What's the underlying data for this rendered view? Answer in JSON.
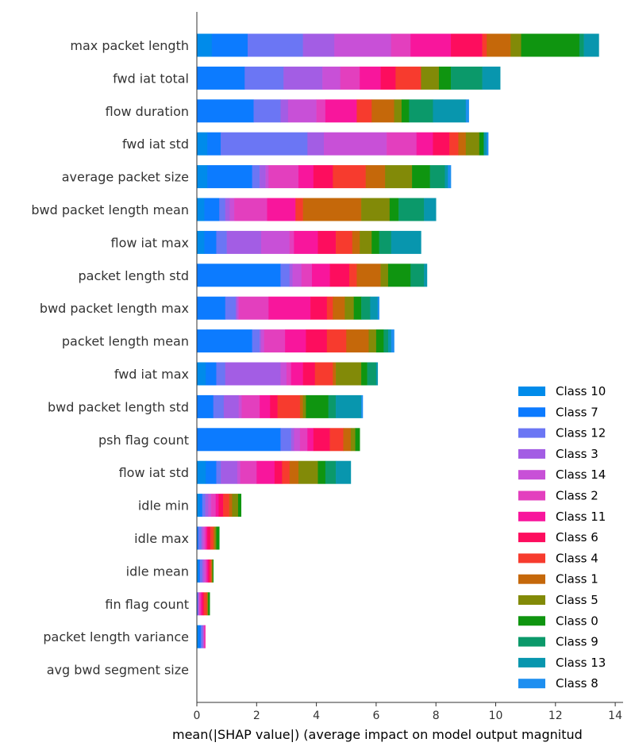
{
  "chart_data": {
    "type": "bar",
    "orientation": "horizontal",
    "stacked": true,
    "xlabel": "mean(|SHAP value|) (average impact on model output magnitud",
    "xlim": [
      0,
      14.2
    ],
    "xticks": [
      0,
      2,
      4,
      6,
      8,
      10,
      12,
      14
    ],
    "grid": false,
    "legend_position": "bottom-right",
    "categories": [
      "max packet length",
      "fwd iat total",
      "flow duration",
      "fwd iat std",
      "average packet size",
      "bwd packet length mean",
      "flow iat max",
      "packet length std",
      "bwd packet length max",
      "packet length mean",
      "fwd iat max",
      "bwd packet length std",
      "psh flag count",
      "flow iat std",
      "idle min",
      "idle max",
      "idle mean",
      "fin flag count",
      "packet length variance",
      "avg bwd segment size"
    ],
    "series": [
      {
        "name": "Class 10",
        "color": "#008bea",
        "values": [
          0.5,
          0,
          0,
          0.35,
          0.35,
          0.25,
          0.25,
          0,
          0,
          0,
          0.3,
          0,
          0,
          0.3,
          0.1,
          0,
          0.05,
          0,
          0.05,
          0
        ]
      },
      {
        "name": "Class 7",
        "color": "#0c7bff",
        "values": [
          1.2,
          1.6,
          1.9,
          0.45,
          1.5,
          0.5,
          0.4,
          2.8,
          0.95,
          1.85,
          0.35,
          0.55,
          2.8,
          0.35,
          0.08,
          0.05,
          0.05,
          0.02,
          0.08,
          0
        ]
      },
      {
        "name": "Class 12",
        "color": "#6b76f4",
        "values": [
          1.85,
          1.3,
          0.9,
          2.9,
          0.25,
          0.2,
          0.35,
          0.3,
          0.35,
          0.25,
          0.3,
          0.35,
          0.35,
          0.15,
          0.1,
          0.1,
          0.08,
          0.02,
          0.06,
          0
        ]
      },
      {
        "name": "Class 3",
        "color": "#a35de4",
        "values": [
          1.05,
          1.3,
          0.25,
          0.55,
          0.2,
          0.15,
          1.15,
          0.1,
          0.05,
          0.05,
          1.85,
          0.5,
          0.1,
          0.55,
          0.1,
          0.05,
          0.05,
          0.02,
          0.03,
          0
        ]
      },
      {
        "name": "Class 14",
        "color": "#c850d7",
        "values": [
          1.9,
          0.6,
          0.95,
          2.1,
          0.1,
          0.15,
          0.95,
          0.3,
          0.05,
          0.1,
          0.2,
          0.1,
          0.2,
          0.1,
          0.1,
          0.05,
          0.05,
          0.02,
          0.02,
          0
        ]
      },
      {
        "name": "Class 2",
        "color": "#e33fbe",
        "values": [
          0.65,
          0.65,
          0.3,
          1.0,
          1.0,
          1.1,
          0.15,
          0.35,
          1.0,
          0.7,
          0.15,
          0.6,
          0.25,
          0.55,
          0.15,
          0.05,
          0.05,
          0.05,
          0.02,
          0
        ]
      },
      {
        "name": "Class 11",
        "color": "#f8169c",
        "values": [
          1.35,
          0.7,
          1.05,
          0.55,
          0.5,
          0.95,
          0.8,
          0.6,
          1.4,
          0.7,
          0.4,
          0.35,
          0.2,
          0.6,
          0.1,
          0.05,
          0.05,
          0.05,
          0.02,
          0
        ]
      },
      {
        "name": "Class 6",
        "color": "#fd0d5e",
        "values": [
          1.05,
          0.5,
          0,
          0.55,
          0.65,
          0,
          0.6,
          0.65,
          0.55,
          0.7,
          0.4,
          0.25,
          0.55,
          0.25,
          0.15,
          0.1,
          0.05,
          0.05,
          0,
          0
        ]
      },
      {
        "name": "Class 4",
        "color": "#f73b2e",
        "values": [
          0.15,
          0.85,
          0.5,
          0.3,
          1.1,
          0.25,
          0.55,
          0.25,
          0.2,
          0.65,
          0.6,
          0.75,
          0.45,
          0.25,
          0.2,
          0.1,
          0.05,
          0.1,
          0,
          0
        ]
      },
      {
        "name": "Class 1",
        "color": "#c5680a",
        "values": [
          0.8,
          0,
          0.75,
          0.25,
          0.65,
          1.95,
          0.25,
          0.8,
          0.4,
          0.75,
          0.1,
          0.1,
          0.25,
          0.3,
          0.1,
          0.05,
          0.03,
          0.03,
          0,
          0
        ]
      },
      {
        "name": "Class 5",
        "color": "#828a08",
        "values": [
          0.35,
          0.6,
          0.25,
          0.45,
          0.9,
          0.95,
          0.4,
          0.25,
          0.3,
          0.25,
          0.85,
          0.1,
          0.15,
          0.65,
          0.2,
          0.05,
          0.02,
          0.02,
          0,
          0
        ]
      },
      {
        "name": "Class 0",
        "color": "#0f9510",
        "values": [
          1.95,
          0.4,
          0.25,
          0.15,
          0.6,
          0.3,
          0.25,
          0.75,
          0.25,
          0.25,
          0.2,
          0.75,
          0.15,
          0.25,
          0.1,
          0.1,
          0.02,
          0.05,
          0,
          0
        ]
      },
      {
        "name": "Class 9",
        "color": "#0b996a",
        "values": [
          0.15,
          1.05,
          0.8,
          0,
          0.5,
          0.85,
          0.4,
          0.45,
          0.3,
          0.15,
          0.3,
          0.25,
          0,
          0.35,
          0,
          0,
          0,
          0,
          0,
          0
        ]
      },
      {
        "name": "Class 13",
        "color": "#0896ae",
        "values": [
          0.5,
          0.6,
          1.1,
          0.1,
          0.1,
          0.4,
          1.0,
          0.1,
          0.25,
          0.1,
          0.05,
          0.85,
          0,
          0.5,
          0,
          0,
          0,
          0,
          0,
          0
        ]
      },
      {
        "name": "Class 8",
        "color": "#1e8ff0",
        "values": [
          0,
          0,
          0.1,
          0.05,
          0.1,
          0,
          0,
          0,
          0.05,
          0.1,
          0,
          0.05,
          0,
          0,
          0,
          0,
          0,
          0,
          0,
          0
        ]
      }
    ]
  }
}
